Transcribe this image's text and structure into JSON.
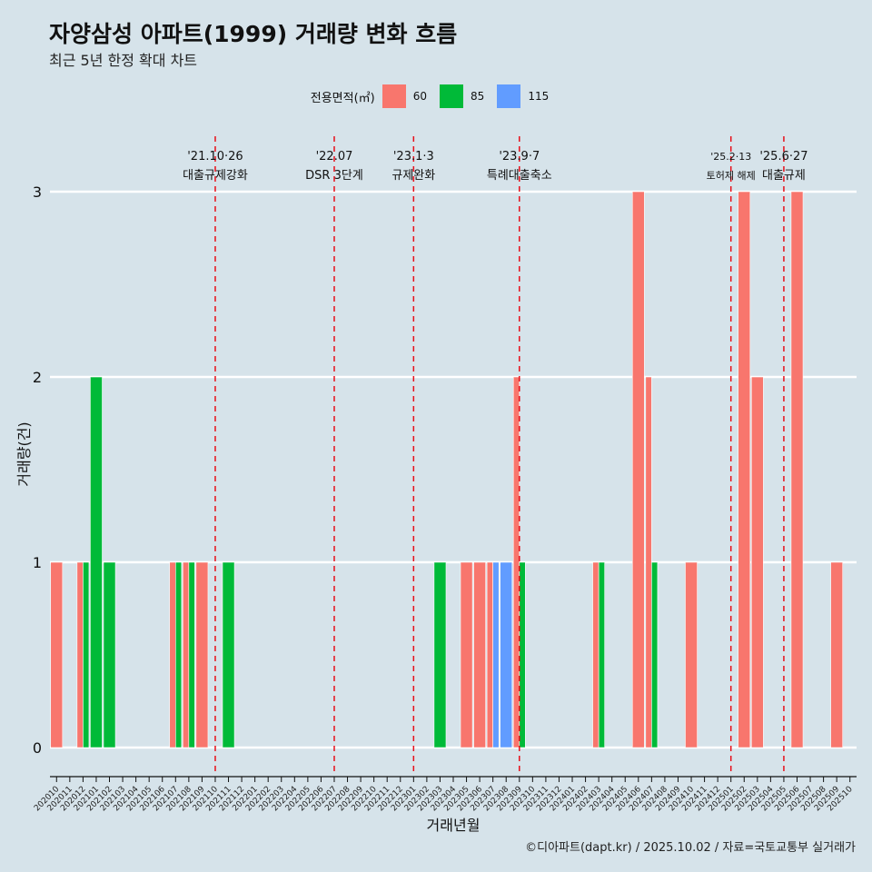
{
  "title": "자양삼성 아파트(1999) 거래량 변화 흐름",
  "subtitle": "최근 5년 한정 확대 차트",
  "caption": "©디아파트(dapt.kr) / 2025.10.02 / 자료=국토교통부 실거래가",
  "legend": {
    "title": "전용면적(㎡)",
    "items": [
      {
        "label": "60",
        "color": "#f8766d"
      },
      {
        "label": "85",
        "color": "#00ba38"
      },
      {
        "label": "115",
        "color": "#619cff"
      }
    ]
  },
  "chart_data": {
    "type": "bar",
    "xlabel": "거래년월",
    "ylabel": "거래량(건)",
    "ylim": [
      0,
      3
    ],
    "yticks": [
      0,
      1,
      2,
      3
    ],
    "categories": [
      "202010",
      "202011",
      "202012",
      "202101",
      "202102",
      "202103",
      "202104",
      "202105",
      "202106",
      "202107",
      "202108",
      "202109",
      "202110",
      "202111",
      "202112",
      "202201",
      "202202",
      "202203",
      "202204",
      "202205",
      "202206",
      "202207",
      "202208",
      "202209",
      "202210",
      "202211",
      "202212",
      "202301",
      "202302",
      "202303",
      "202304",
      "202305",
      "202306",
      "202307",
      "202308",
      "202309",
      "202310",
      "202311",
      "202312",
      "202401",
      "202402",
      "202403",
      "202404",
      "202405",
      "202406",
      "202407",
      "202408",
      "202409",
      "202410",
      "202411",
      "202412",
      "202501",
      "202502",
      "202503",
      "202504",
      "202505",
      "202506",
      "202507",
      "202508",
      "202509",
      "202510"
    ],
    "series": [
      {
        "name": "60",
        "color": "#f8766d",
        "values": [
          1,
          0,
          1,
          0,
          0,
          0,
          0,
          0,
          0,
          1,
          1,
          1,
          0,
          0,
          0,
          0,
          0,
          0,
          0,
          0,
          0,
          0,
          0,
          0,
          0,
          0,
          0,
          0,
          0,
          0,
          0,
          1,
          1,
          1,
          0,
          2,
          0,
          0,
          0,
          0,
          0,
          1,
          0,
          0,
          3,
          2,
          0,
          0,
          1,
          0,
          0,
          0,
          3,
          2,
          0,
          0,
          3,
          0,
          0,
          1,
          0
        ]
      },
      {
        "name": "85",
        "color": "#00ba38",
        "values": [
          0,
          0,
          1,
          2,
          1,
          0,
          0,
          0,
          0,
          1,
          1,
          0,
          0,
          1,
          0,
          0,
          0,
          0,
          0,
          0,
          0,
          0,
          0,
          0,
          0,
          0,
          0,
          0,
          0,
          1,
          0,
          0,
          0,
          0,
          0,
          1,
          0,
          0,
          0,
          0,
          0,
          1,
          0,
          0,
          0,
          1,
          0,
          0,
          0,
          0,
          0,
          0,
          0,
          0,
          0,
          0,
          0,
          0,
          0,
          0,
          0
        ]
      },
      {
        "name": "115",
        "color": "#619cff",
        "values": [
          0,
          0,
          0,
          0,
          0,
          0,
          0,
          0,
          0,
          0,
          0,
          0,
          0,
          0,
          0,
          0,
          0,
          0,
          0,
          0,
          0,
          0,
          0,
          0,
          0,
          0,
          0,
          0,
          0,
          0,
          0,
          0,
          0,
          1,
          1,
          0,
          0,
          0,
          0,
          0,
          0,
          0,
          0,
          0,
          0,
          0,
          0,
          0,
          0,
          0,
          0,
          0,
          0,
          0,
          0,
          0,
          0,
          0,
          0,
          0,
          0
        ]
      }
    ],
    "events": [
      {
        "date": "'21.10·26",
        "label": "대출규제강화",
        "at": 12.5
      },
      {
        "date": "'22.07",
        "label": "DSR 3단계",
        "at": 21.5
      },
      {
        "date": "'23.1·3",
        "label": "규제완화",
        "at": 27.5
      },
      {
        "date": "'23.9·7",
        "label": "특례대출축소",
        "at": 35.5
      },
      {
        "date": "'25.2·13",
        "label": "토허제 해제",
        "at": 51.5
      },
      {
        "date": "'25.6·27",
        "label": "대출규제",
        "at": 55.5
      }
    ]
  }
}
